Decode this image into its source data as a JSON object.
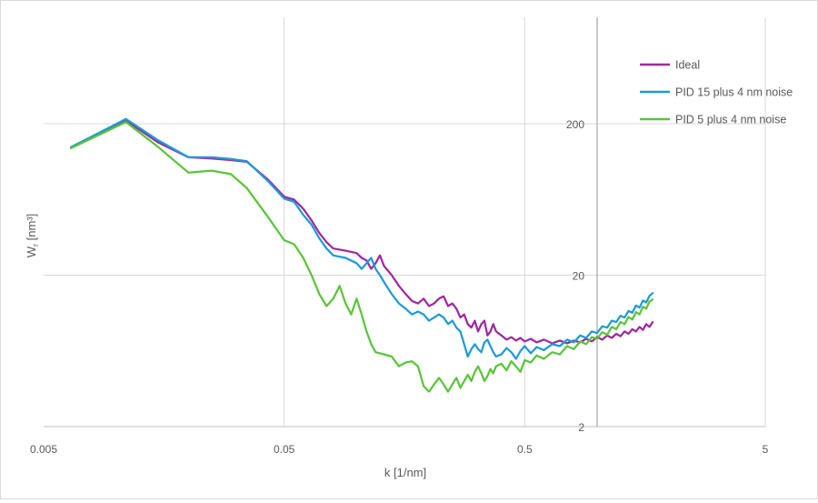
{
  "chart_data": {
    "type": "line",
    "title": "",
    "xlabel": "k [1/nm]",
    "ylabel_main": "W",
    "ylabel_sub": "r",
    "ylabel_unit": " [nm³]",
    "x_scale": "log",
    "y_scale": "log",
    "xlim": [
      0.005,
      5
    ],
    "ylim": [
      2,
      500
    ],
    "x_ticks": [
      {
        "value": 0.005,
        "label": "0.005"
      },
      {
        "value": 0.05,
        "label": "0.05"
      },
      {
        "value": 0.5,
        "label": "0.5"
      },
      {
        "value": 5,
        "label": "5"
      }
    ],
    "y_ticks": [
      {
        "value": 2,
        "label": "2"
      },
      {
        "value": 20,
        "label": "20"
      },
      {
        "value": 200,
        "label": "200"
      }
    ],
    "grid": true,
    "legend_position": "top-right",
    "series": [
      {
        "name": "Ideal",
        "color": "#9e2a9e",
        "points": [
          [
            0.0065,
            140
          ],
          [
            0.011,
            210
          ],
          [
            0.015,
            150
          ],
          [
            0.02,
            120
          ],
          [
            0.025,
            118
          ],
          [
            0.03,
            115
          ],
          [
            0.035,
            112
          ],
          [
            0.043,
            85
          ],
          [
            0.05,
            66
          ],
          [
            0.055,
            63
          ],
          [
            0.06,
            55
          ],
          [
            0.065,
            46
          ],
          [
            0.07,
            38
          ],
          [
            0.075,
            33
          ],
          [
            0.08,
            30
          ],
          [
            0.09,
            29
          ],
          [
            0.1,
            28
          ],
          [
            0.105,
            26
          ],
          [
            0.11,
            25
          ],
          [
            0.115,
            22
          ],
          [
            0.12,
            24
          ],
          [
            0.125,
            27
          ],
          [
            0.13,
            23
          ],
          [
            0.14,
            20
          ],
          [
            0.15,
            17
          ],
          [
            0.16,
            15
          ],
          [
            0.17,
            13.5
          ],
          [
            0.18,
            13
          ],
          [
            0.19,
            14
          ],
          [
            0.2,
            12.5
          ],
          [
            0.21,
            13
          ],
          [
            0.22,
            14
          ],
          [
            0.23,
            14.5
          ],
          [
            0.24,
            12.5
          ],
          [
            0.25,
            13
          ],
          [
            0.26,
            12
          ],
          [
            0.27,
            10.5
          ],
          [
            0.28,
            11
          ],
          [
            0.29,
            9.5
          ],
          [
            0.3,
            9
          ],
          [
            0.31,
            10
          ],
          [
            0.32,
            8.5
          ],
          [
            0.33,
            9.5
          ],
          [
            0.34,
            10
          ],
          [
            0.35,
            8
          ],
          [
            0.36,
            8.5
          ],
          [
            0.37,
            9.5
          ],
          [
            0.38,
            8.5
          ],
          [
            0.4,
            8
          ],
          [
            0.42,
            7.5
          ],
          [
            0.44,
            7.8
          ],
          [
            0.46,
            7.4
          ],
          [
            0.48,
            7.7
          ],
          [
            0.5,
            7.3
          ],
          [
            0.53,
            7.6
          ],
          [
            0.56,
            7.2
          ],
          [
            0.6,
            7.5
          ],
          [
            0.65,
            7.1
          ],
          [
            0.7,
            7.4
          ],
          [
            0.75,
            7.1
          ],
          [
            0.8,
            7.4
          ],
          [
            0.85,
            7.2
          ],
          [
            0.9,
            7.6
          ],
          [
            0.95,
            7.3
          ],
          [
            1.0,
            7.8
          ],
          [
            1.05,
            7.5
          ],
          [
            1.1,
            8.0
          ],
          [
            1.15,
            7.7
          ],
          [
            1.2,
            8.2
          ],
          [
            1.25,
            7.9
          ],
          [
            1.3,
            8.5
          ],
          [
            1.35,
            8.2
          ],
          [
            1.4,
            8.8
          ],
          [
            1.45,
            8.5
          ],
          [
            1.5,
            9.1
          ],
          [
            1.55,
            8.7
          ],
          [
            1.6,
            9.5
          ],
          [
            1.65,
            9.1
          ],
          [
            1.7,
            9.8
          ]
        ]
      },
      {
        "name": "PID 15 plus 4 nm noise",
        "color": "#1f9ad6",
        "points": [
          [
            0.0065,
            140
          ],
          [
            0.011,
            215
          ],
          [
            0.015,
            155
          ],
          [
            0.02,
            120
          ],
          [
            0.025,
            120
          ],
          [
            0.03,
            117
          ],
          [
            0.035,
            113
          ],
          [
            0.043,
            83
          ],
          [
            0.05,
            64
          ],
          [
            0.055,
            61
          ],
          [
            0.06,
            50
          ],
          [
            0.065,
            43
          ],
          [
            0.07,
            35
          ],
          [
            0.075,
            30
          ],
          [
            0.08,
            27
          ],
          [
            0.09,
            26
          ],
          [
            0.1,
            24
          ],
          [
            0.105,
            22
          ],
          [
            0.11,
            24
          ],
          [
            0.115,
            26
          ],
          [
            0.12,
            22
          ],
          [
            0.125,
            20
          ],
          [
            0.13,
            18
          ],
          [
            0.14,
            15
          ],
          [
            0.15,
            13
          ],
          [
            0.16,
            12
          ],
          [
            0.17,
            11
          ],
          [
            0.18,
            11.5
          ],
          [
            0.19,
            11
          ],
          [
            0.2,
            10
          ],
          [
            0.21,
            10.5
          ],
          [
            0.22,
            11
          ],
          [
            0.23,
            10.5
          ],
          [
            0.24,
            9.5
          ],
          [
            0.25,
            10
          ],
          [
            0.26,
            9
          ],
          [
            0.27,
            8.5
          ],
          [
            0.28,
            7
          ],
          [
            0.29,
            5.8
          ],
          [
            0.3,
            6.5
          ],
          [
            0.31,
            7
          ],
          [
            0.32,
            6.5
          ],
          [
            0.33,
            6.2
          ],
          [
            0.34,
            7.2
          ],
          [
            0.35,
            7.5
          ],
          [
            0.36,
            6.8
          ],
          [
            0.37,
            6.2
          ],
          [
            0.38,
            5.8
          ],
          [
            0.4,
            6
          ],
          [
            0.42,
            6.6
          ],
          [
            0.44,
            6.2
          ],
          [
            0.46,
            5.6
          ],
          [
            0.48,
            6.3
          ],
          [
            0.5,
            6.8
          ],
          [
            0.53,
            6.1
          ],
          [
            0.56,
            6.7
          ],
          [
            0.6,
            6.4
          ],
          [
            0.65,
            7.0
          ],
          [
            0.7,
            6.8
          ],
          [
            0.75,
            7.5
          ],
          [
            0.8,
            7.2
          ],
          [
            0.85,
            8.0
          ],
          [
            0.9,
            7.7
          ],
          [
            0.95,
            8.5
          ],
          [
            1.0,
            8.3
          ],
          [
            1.05,
            9.2
          ],
          [
            1.1,
            9.0
          ],
          [
            1.15,
            10.0
          ],
          [
            1.2,
            9.8
          ],
          [
            1.25,
            10.8
          ],
          [
            1.3,
            10.5
          ],
          [
            1.35,
            11.6
          ],
          [
            1.4,
            11.3
          ],
          [
            1.45,
            12.6
          ],
          [
            1.5,
            12.2
          ],
          [
            1.55,
            13.6
          ],
          [
            1.6,
            13.2
          ],
          [
            1.65,
            14.6
          ],
          [
            1.7,
            15.2
          ]
        ]
      },
      {
        "name": "PID 5 plus 4 nm noise",
        "color": "#5bc43c",
        "points": [
          [
            0.0065,
            138
          ],
          [
            0.011,
            205
          ],
          [
            0.015,
            140
          ],
          [
            0.02,
            95
          ],
          [
            0.025,
            98
          ],
          [
            0.03,
            93
          ],
          [
            0.035,
            75
          ],
          [
            0.043,
            48
          ],
          [
            0.05,
            34
          ],
          [
            0.055,
            32
          ],
          [
            0.06,
            26
          ],
          [
            0.065,
            20
          ],
          [
            0.07,
            15
          ],
          [
            0.075,
            12.5
          ],
          [
            0.08,
            14
          ],
          [
            0.085,
            17
          ],
          [
            0.09,
            13
          ],
          [
            0.095,
            11
          ],
          [
            0.1,
            14
          ],
          [
            0.105,
            11
          ],
          [
            0.11,
            8.5
          ],
          [
            0.115,
            7
          ],
          [
            0.12,
            6.2
          ],
          [
            0.13,
            6
          ],
          [
            0.14,
            5.8
          ],
          [
            0.15,
            5
          ],
          [
            0.16,
            5.3
          ],
          [
            0.17,
            5.4
          ],
          [
            0.18,
            5
          ],
          [
            0.19,
            3.7
          ],
          [
            0.2,
            3.4
          ],
          [
            0.21,
            3.8
          ],
          [
            0.22,
            4.2
          ],
          [
            0.23,
            3.8
          ],
          [
            0.24,
            3.4
          ],
          [
            0.25,
            3.8
          ],
          [
            0.26,
            4.2
          ],
          [
            0.27,
            3.6
          ],
          [
            0.28,
            4.0
          ],
          [
            0.29,
            4.4
          ],
          [
            0.3,
            4.0
          ],
          [
            0.31,
            4.6
          ],
          [
            0.32,
            5.0
          ],
          [
            0.33,
            4.5
          ],
          [
            0.34,
            4.0
          ],
          [
            0.35,
            4.3
          ],
          [
            0.36,
            4.8
          ],
          [
            0.37,
            4.5
          ],
          [
            0.38,
            5.0
          ],
          [
            0.4,
            5.2
          ],
          [
            0.42,
            4.7
          ],
          [
            0.44,
            5.4
          ],
          [
            0.46,
            5.0
          ],
          [
            0.48,
            4.6
          ],
          [
            0.5,
            5.5
          ],
          [
            0.53,
            5.3
          ],
          [
            0.56,
            5.9
          ],
          [
            0.6,
            5.6
          ],
          [
            0.65,
            6.2
          ],
          [
            0.7,
            6.0
          ],
          [
            0.75,
            6.8
          ],
          [
            0.8,
            6.5
          ],
          [
            0.85,
            7.3
          ],
          [
            0.9,
            7.0
          ],
          [
            0.95,
            7.8
          ],
          [
            1.0,
            7.6
          ],
          [
            1.05,
            8.4
          ],
          [
            1.1,
            8.1
          ],
          [
            1.15,
            9.1
          ],
          [
            1.2,
            8.8
          ],
          [
            1.25,
            9.8
          ],
          [
            1.3,
            9.5
          ],
          [
            1.35,
            10.6
          ],
          [
            1.4,
            10.2
          ],
          [
            1.45,
            11.4
          ],
          [
            1.5,
            11.0
          ],
          [
            1.55,
            12.4
          ],
          [
            1.6,
            12.0
          ],
          [
            1.65,
            13.4
          ],
          [
            1.7,
            13.8
          ]
        ]
      }
    ]
  }
}
